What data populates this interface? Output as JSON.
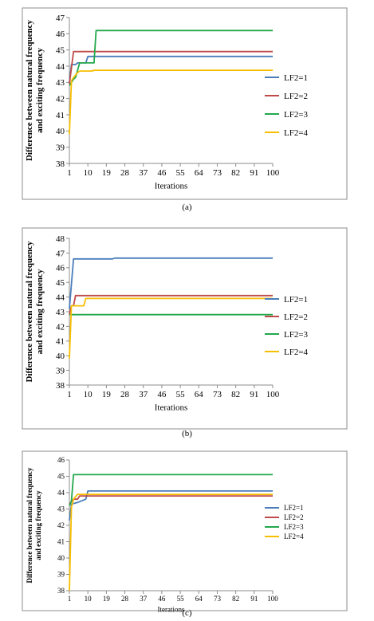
{
  "chart_data": [
    {
      "type": "line",
      "caption": "(a)",
      "xlabel": "Iterations",
      "ylabel_lines": [
        "Difference between natural frequency",
        "and exciting frequency"
      ],
      "xlim": [
        1,
        100
      ],
      "ylim": [
        38,
        47
      ],
      "yticks": [
        38,
        39,
        40,
        41,
        42,
        43,
        44,
        45,
        46,
        47
      ],
      "xticks": [
        1,
        10,
        19,
        28,
        37,
        46,
        55,
        64,
        73,
        82,
        91,
        100
      ],
      "grid": false,
      "legend_position": "right",
      "series": [
        {
          "name": "LF2=1",
          "color": "#4a7ebb",
          "points": [
            [
              1,
              43
            ],
            [
              2,
              44.1
            ],
            [
              4,
              44.1
            ],
            [
              5,
              44.2
            ],
            [
              9,
              44.2
            ],
            [
              10,
              44.6
            ],
            [
              100,
              44.6
            ]
          ]
        },
        {
          "name": "LF2=2",
          "color": "#be4b48",
          "points": [
            [
              1,
              42.9
            ],
            [
              3,
              44.9
            ],
            [
              100,
              44.9
            ]
          ]
        },
        {
          "name": "LF2=3",
          "color": "#23a84c",
          "points": [
            [
              1,
              42.8
            ],
            [
              3,
              43.2
            ],
            [
              4,
              43.3
            ],
            [
              6,
              44.2
            ],
            [
              13,
              44.2
            ],
            [
              14,
              46.2
            ],
            [
              100,
              46.2
            ]
          ]
        },
        {
          "name": "LF2=4",
          "color": "#f7be00",
          "points": [
            [
              1,
              39.8
            ],
            [
              2,
              43.1
            ],
            [
              3,
              43.3
            ],
            [
              5,
              43.6
            ],
            [
              6,
              43.7
            ],
            [
              12,
              43.7
            ],
            [
              13,
              43.75
            ],
            [
              100,
              43.75
            ]
          ]
        }
      ]
    },
    {
      "type": "line",
      "caption": "(b)",
      "xlabel": "Iterations",
      "ylabel_lines": [
        "Difference between natural frequency",
        "and exciting frequency"
      ],
      "xlim": [
        1,
        100
      ],
      "ylim": [
        38,
        48
      ],
      "yticks": [
        38,
        39,
        40,
        41,
        42,
        43,
        44,
        45,
        46,
        47,
        48
      ],
      "xticks": [
        1,
        10,
        19,
        28,
        37,
        46,
        55,
        64,
        73,
        82,
        91,
        100
      ],
      "grid": false,
      "legend_position": "right",
      "series": [
        {
          "name": "LF2=1",
          "color": "#4a7ebb",
          "points": [
            [
              1,
              43.2
            ],
            [
              3,
              46.6
            ],
            [
              22,
              46.6
            ],
            [
              23,
              46.65
            ],
            [
              100,
              46.65
            ]
          ]
        },
        {
          "name": "LF2=2",
          "color": "#be4b48",
          "points": [
            [
              1,
              42.8
            ],
            [
              2,
              43.4
            ],
            [
              3,
              43.4
            ],
            [
              4,
              44.1
            ],
            [
              100,
              44.1
            ]
          ]
        },
        {
          "name": "LF2=3",
          "color": "#23a84c",
          "points": [
            [
              1,
              42.8
            ],
            [
              100,
              42.8
            ]
          ]
        },
        {
          "name": "LF2=4",
          "color": "#f7be00",
          "points": [
            [
              1,
              39.8
            ],
            [
              2,
              43.4
            ],
            [
              8,
              43.4
            ],
            [
              9,
              43.9
            ],
            [
              100,
              43.9
            ]
          ]
        }
      ]
    },
    {
      "type": "line",
      "caption": "(c)",
      "xlabel": "Iterations",
      "ylabel_lines": [
        "Difference between natural frequency",
        "and exciting frequency"
      ],
      "xlim": [
        1,
        100
      ],
      "ylim": [
        38,
        46
      ],
      "yticks": [
        38,
        39,
        40,
        41,
        42,
        43,
        44,
        45,
        46
      ],
      "xticks": [
        1,
        10,
        19,
        28,
        37,
        46,
        55,
        64,
        73,
        82,
        91,
        100
      ],
      "grid": false,
      "legend_position": "right",
      "series": [
        {
          "name": "LF2=1",
          "color": "#4a7ebb",
          "points": [
            [
              1,
              42.3
            ],
            [
              2,
              43.3
            ],
            [
              5,
              43.4
            ],
            [
              9,
              43.6
            ],
            [
              10,
              44.1
            ],
            [
              100,
              44.1
            ]
          ]
        },
        {
          "name": "LF2=2",
          "color": "#be4b48",
          "points": [
            [
              1,
              43.3
            ],
            [
              3,
              43.6
            ],
            [
              5,
              43.6
            ],
            [
              6,
              43.8
            ],
            [
              100,
              43.8
            ]
          ]
        },
        {
          "name": "LF2=3",
          "color": "#23a84c",
          "points": [
            [
              1,
              43.2
            ],
            [
              2,
              43.5
            ],
            [
              3,
              45.1
            ],
            [
              100,
              45.1
            ]
          ]
        },
        {
          "name": "LF2=4",
          "color": "#f7be00",
          "points": [
            [
              1,
              38
            ],
            [
              2,
              43.1
            ],
            [
              3,
              43.6
            ],
            [
              5,
              43.9
            ],
            [
              100,
              43.9
            ]
          ]
        }
      ]
    }
  ]
}
